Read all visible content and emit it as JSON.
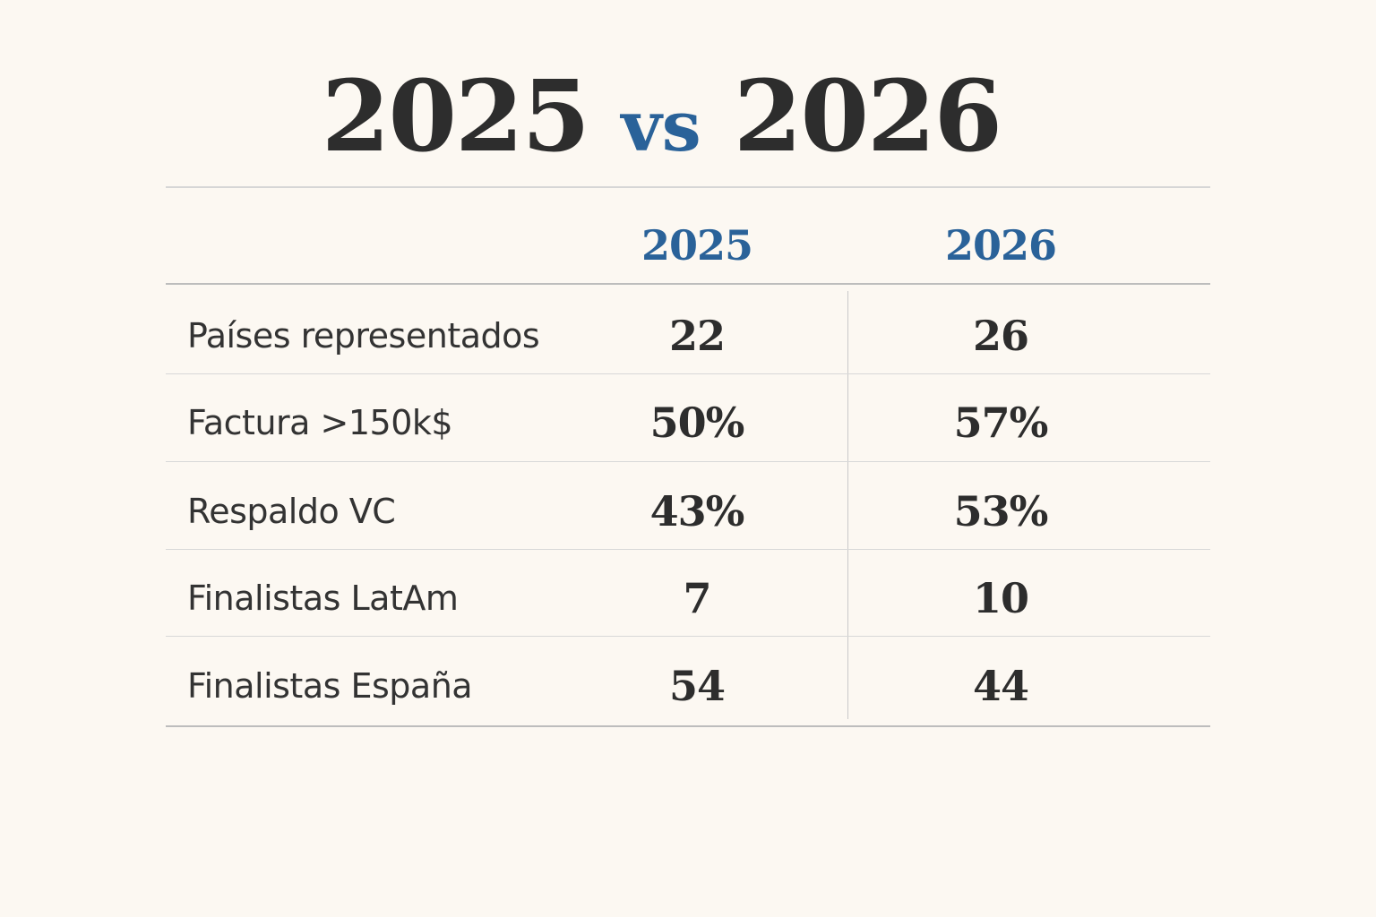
{
  "chart_data": {
    "type": "table",
    "title": {
      "left": "2025",
      "middle": "vs",
      "right": "2026"
    },
    "columns": [
      "2025",
      "2026"
    ],
    "rows": [
      {
        "label": "Países representados",
        "values": [
          "22",
          "26"
        ]
      },
      {
        "label": "Factura >150k$",
        "values": [
          "50%",
          "57%"
        ]
      },
      {
        "label": "Respaldo VC",
        "values": [
          "43%",
          "53%"
        ]
      },
      {
        "label": "Finalistas LatAm",
        "values": [
          "7",
          "10"
        ]
      },
      {
        "label": "Finalistas España",
        "values": [
          "54",
          "44"
        ]
      }
    ]
  },
  "colors": {
    "background": "#fcf8f2",
    "text": "#2d2d2d",
    "accent": "#2a6299",
    "rule": "#c9c9c9"
  }
}
